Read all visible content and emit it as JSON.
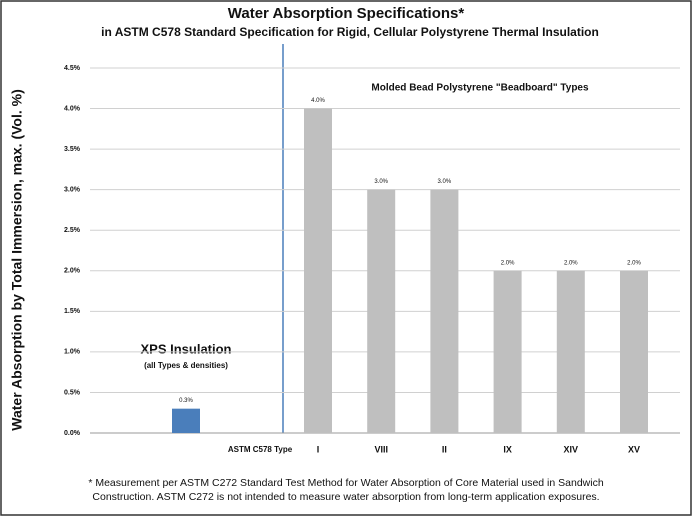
{
  "chart_data": {
    "type": "bar",
    "title": "Water Absorption Specifications*",
    "subtitle": "in ASTM C578 Standard Specification for Rigid, Cellular Polystyrene Thermal Insulation",
    "y_axis_label": "Water Absorption by Total Immersion, max. (Vol. %)",
    "categories": [
      null,
      "I",
      "VIII",
      "II",
      "IX",
      "XIV",
      "XV"
    ],
    "values": [
      0.3,
      4.0,
      3.0,
      3.0,
      2.0,
      2.0,
      2.0
    ],
    "value_labels": [
      "0.3%",
      "4.0%",
      "3.0%",
      "3.0%",
      "2.0%",
      "2.0%",
      "2.0%"
    ],
    "colors": [
      "#4a7ebb",
      "#bfbfbf",
      "#bfbfbf",
      "#bfbfbf",
      "#bfbfbf",
      "#bfbfbf",
      "#bfbfbf"
    ],
    "ylim": [
      0,
      4.5
    ],
    "yticks": [
      {
        "value": 0,
        "label": "0.0%"
      },
      {
        "value": 0.5,
        "label": "0.5%"
      },
      {
        "value": 1.0,
        "label": "1.0%"
      },
      {
        "value": 1.5,
        "label": "1.5%"
      },
      {
        "value": 2.0,
        "label": "2.0%"
      },
      {
        "value": 2.5,
        "label": "2.5%"
      },
      {
        "value": 3.0,
        "label": "3.0%"
      },
      {
        "value": 3.5,
        "label": "3.5%"
      },
      {
        "value": 4.0,
        "label": "4.0%"
      },
      {
        "value": 4.5,
        "label": "4.5%"
      }
    ],
    "grid": true,
    "annotations": {
      "beadboard": "Molded Bead Polystyrene \"Beadboard\" Types",
      "xps": "XPS Insulation",
      "xps_note": "(all Types & densities)",
      "type_label": "ASTM C578 Type"
    },
    "footnote": [
      "* Measurement per ASTM C272 Standard Test Method for Water Absorption of  Core Material used in Sandwich",
      "Construction. ASTM C272 is not intended to measure water absorption from long-term application exposures."
    ]
  }
}
